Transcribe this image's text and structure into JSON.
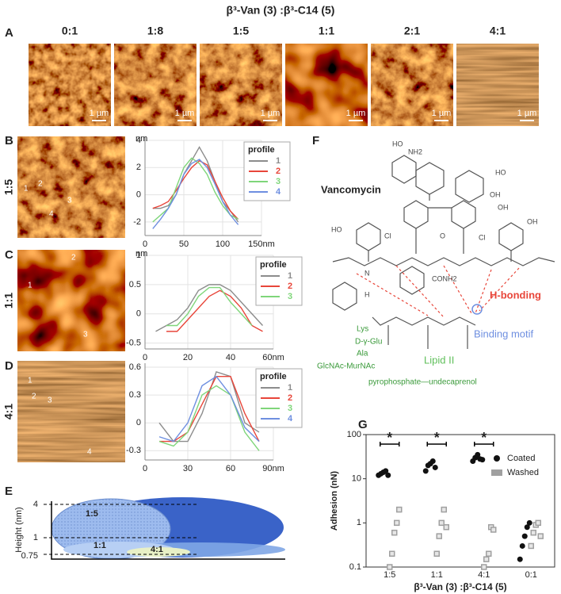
{
  "figure_title": "β³-Van (3) :β³-C14 (5)",
  "panel_labels": [
    "A",
    "B",
    "C",
    "D",
    "E",
    "F",
    "G"
  ],
  "panel_a": {
    "ratios": [
      "0:1",
      "1:8",
      "1:5",
      "1:1",
      "2:1",
      "4:1"
    ],
    "scale": "1 µm"
  },
  "row_labels": [
    "1:5",
    "1:1",
    "4:1"
  ],
  "profile_markers": {
    "b": [
      "1",
      "2",
      "3",
      "4"
    ],
    "c": [
      "1",
      "2",
      "3"
    ],
    "d": [
      "1",
      "2",
      "3",
      "4"
    ]
  },
  "panel_e": {
    "y_label": "Height (nm)",
    "ticks": [
      "4",
      "1",
      "0.75"
    ],
    "labels": [
      "1:5",
      "1:1",
      "4:1"
    ]
  },
  "panel_f": {
    "title": "Vancomycin",
    "h_bonding": "H-bonding",
    "binding_motif": "Binding motif",
    "lipid": "Lipid II",
    "chain": [
      "Lys",
      "D-γ-Glu",
      "Ala",
      "GlcNAc-MurNAc"
    ],
    "tail": "pyrophosphate—undecaprenol",
    "atoms": [
      "HO",
      "NH2",
      "HO",
      "OH",
      "OH",
      "Cl",
      "Cl",
      "HO",
      "OH",
      "CONH2",
      "O",
      "H",
      "N"
    ]
  },
  "chart_data": [
    {
      "type": "line",
      "y_label": "nm",
      "legend_title": "profile",
      "legend": "upper right",
      "grid": true,
      "x": [
        10,
        20,
        30,
        40,
        50,
        60,
        70,
        80,
        90,
        100,
        110,
        120
      ],
      "xlim": [
        0,
        150
      ],
      "xticks": [
        0,
        50,
        100,
        {
          "value": 150,
          "label": "150nm"
        }
      ],
      "ylim": [
        -3,
        4
      ],
      "yticks": [
        -2,
        0,
        2,
        4
      ],
      "series": [
        {
          "name": "1",
          "color": "#8c8c8c",
          "values": [
            -1,
            -1,
            -0.8,
            0,
            1.5,
            2.5,
            3.5,
            2.5,
            1,
            -0.5,
            -1.2,
            -2
          ]
        },
        {
          "name": "2",
          "color": "#e8463a",
          "values": [
            -1,
            -0.8,
            -0.5,
            0.3,
            1.2,
            2,
            2.5,
            2.2,
            1,
            -0.2,
            -1.2,
            -1.8
          ]
        },
        {
          "name": "3",
          "color": "#7fd67a",
          "values": [
            -2,
            -1.5,
            -1,
            0.5,
            2,
            2.7,
            2.3,
            1.5,
            0.2,
            -0.8,
            -1.5,
            -1.8
          ]
        },
        {
          "name": "4",
          "color": "#6e8fe0",
          "values": [
            -2.5,
            -1.8,
            -1,
            0,
            1.5,
            2.3,
            2.6,
            2,
            0.8,
            -0.5,
            -1.5,
            -2.2
          ]
        }
      ]
    },
    {
      "type": "line",
      "y_label": "nm",
      "legend_title": "profile",
      "legend": "upper right",
      "grid": true,
      "x": [
        5,
        10,
        15,
        20,
        25,
        30,
        35,
        40,
        45,
        50,
        55
      ],
      "xlim": [
        0,
        60
      ],
      "xticks": [
        0,
        20,
        40,
        {
          "value": 60,
          "label": "60nm"
        }
      ],
      "ylim": [
        -0.6,
        1
      ],
      "yticks": [
        -0.5,
        0,
        0.5,
        1
      ],
      "series": [
        {
          "name": "1",
          "color": "#8c8c8c",
          "values": [
            -0.3,
            -0.2,
            -0.1,
            0.1,
            0.4,
            0.5,
            0.5,
            0.4,
            0.2,
            0,
            -0.2
          ]
        },
        {
          "name": "2",
          "color": "#e8463a",
          "values": [
            null,
            -0.3,
            -0.3,
            -0.1,
            0.1,
            0.3,
            0.4,
            0.3,
            0.1,
            -0.2,
            -0.3
          ]
        },
        {
          "name": "3",
          "color": "#7fd67a",
          "values": [
            null,
            -0.2,
            -0.2,
            0,
            0.3,
            0.45,
            0.45,
            0.2,
            0,
            -0.2,
            null
          ]
        }
      ]
    },
    {
      "type": "line",
      "legend_title": "profile",
      "legend": "upper right",
      "grid": true,
      "x": [
        10,
        20,
        30,
        40,
        50,
        60,
        70,
        80
      ],
      "xlim": [
        0,
        90
      ],
      "xticks": [
        0,
        30,
        60,
        {
          "value": 90,
          "label": "90nm"
        }
      ],
      "ylim": [
        -0.4,
        0.6
      ],
      "yticks": [
        -0.3,
        0,
        0.3,
        0.6
      ],
      "series": [
        {
          "name": "1",
          "color": "#8c8c8c",
          "values": [
            0,
            -0.2,
            -0.2,
            0.1,
            0.55,
            0.5,
            0,
            -0.1
          ]
        },
        {
          "name": "2",
          "color": "#e8463a",
          "values": [
            -0.2,
            -0.2,
            -0.1,
            0.2,
            0.5,
            0.5,
            0.1,
            -0.2
          ]
        },
        {
          "name": "3",
          "color": "#7fd67a",
          "values": [
            -0.2,
            -0.25,
            -0.1,
            0.3,
            0.4,
            0.3,
            -0.1,
            -0.3
          ]
        },
        {
          "name": "4",
          "color": "#6e8fe0",
          "values": [
            -0.15,
            -0.2,
            0,
            0.4,
            0.5,
            0.3,
            -0.05,
            -0.2
          ]
        }
      ]
    },
    {
      "type": "scatter",
      "y_label": "Adhesion (nN)",
      "x_label": "β³-Van (3) :β³-C14 (5)",
      "log_y": true,
      "legend": "upper right",
      "categories": [
        "1:5",
        "1:1",
        "4:1",
        "0:1"
      ],
      "ylim": [
        0.1,
        100
      ],
      "yticks": [
        0.1,
        1,
        10,
        100
      ],
      "annotations": [
        "*",
        "*",
        "*"
      ],
      "series": [
        {
          "name": "Coated",
          "color": "#111111",
          "values": [
            [
              12,
              13,
              14,
              15,
              12
            ],
            [
              15,
              20,
              22,
              25,
              18
            ],
            [
              25,
              30,
              35,
              28,
              27
            ],
            [
              0.15,
              0.3,
              0.5,
              0.8,
              1
            ]
          ]
        },
        {
          "name": "Washed",
          "color": "#a0a0a0",
          "values": [
            [
              0.1,
              0.2,
              0.6,
              1,
              2
            ],
            [
              0.2,
              0.5,
              1,
              2,
              0.8
            ],
            [
              0.1,
              0.15,
              0.2,
              0.8,
              0.7
            ],
            [
              0.3,
              0.6,
              0.9,
              1,
              0.5
            ]
          ]
        }
      ]
    }
  ]
}
